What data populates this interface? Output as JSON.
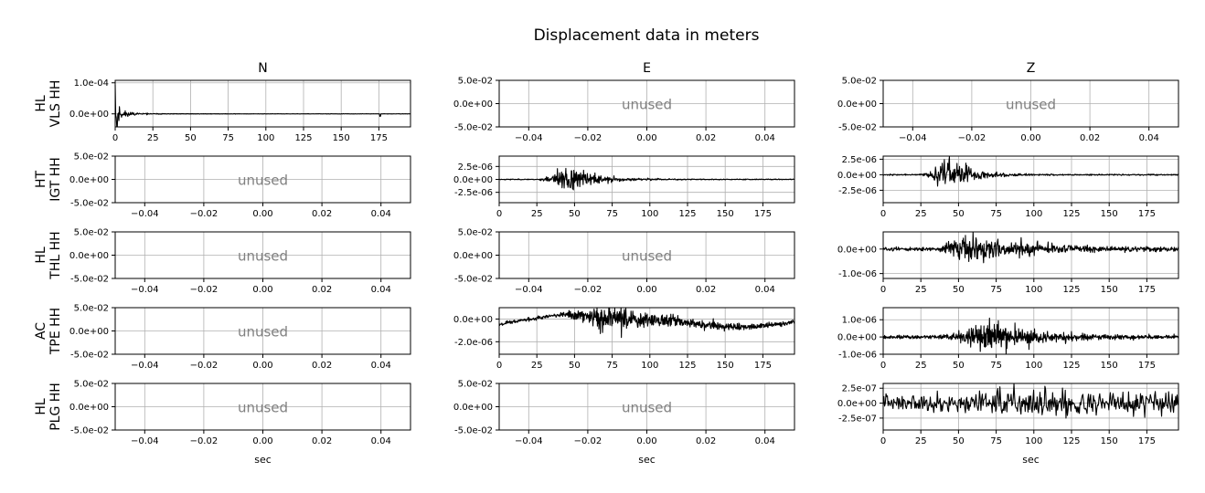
{
  "chart_data": {
    "type": "line",
    "title": "Displacement data in meters",
    "columns": [
      "N",
      "E",
      "Z"
    ],
    "xlabel": "sec",
    "unused_label": "unused",
    "rows": [
      {
        "label": [
          "HL",
          "VLS HH"
        ],
        "panels": [
          {
            "used": true,
            "xlim": [
              0,
              196
            ],
            "ylim": [
              -4.2e-05,
              0.000108
            ],
            "xticks": [
              0,
              25,
              50,
              75,
              100,
              125,
              150,
              175
            ],
            "xtick_labels": [
              "0",
              "25",
              "50",
              "75",
              "100",
              "125",
              "150",
              "175"
            ],
            "yticks": [
              0.0001,
              0
            ],
            "ytick_labels": [
              "1.0e-04",
              "0.0e+00"
            ],
            "signal": {
              "n": 560,
              "seed": 11,
              "onset": 0,
              "peak": 5.5e-06,
              "amp": 6e-05,
              "decay": 0.16,
              "noise": 5e-07,
              "drift": 0,
              "base": 5.5e-06,
              "spikes": [
                [
                  0.0,
                  9.5e-05
                ],
                [
                  1.2,
                  -4e-05
                ],
                [
                  176,
                  -8e-06
                ]
              ]
            }
          },
          {
            "used": false,
            "xlim": [
              -0.05,
              0.05
            ],
            "ylim": [
              -0.05,
              0.05
            ],
            "xticks": [
              -0.04,
              -0.02,
              0,
              0.02,
              0.04
            ],
            "xtick_labels": [
              "−0.04",
              "−0.02",
              "0.00",
              "0.02",
              "0.04"
            ],
            "yticks": [
              0.05,
              0,
              -0.05
            ],
            "ytick_labels": [
              "5.0e-02",
              "0.0e+00",
              "-5.0e-02"
            ]
          },
          {
            "used": false,
            "xlim": [
              -0.05,
              0.05
            ],
            "ylim": [
              -0.05,
              0.05
            ],
            "xticks": [
              -0.04,
              -0.02,
              0,
              0.02,
              0.04
            ],
            "xtick_labels": [
              "−0.04",
              "−0.02",
              "0.00",
              "0.02",
              "0.04"
            ],
            "yticks": [
              0.05,
              0,
              -0.05
            ],
            "ytick_labels": [
              "5.0e-02",
              "0.0e+00",
              "-5.0e-02"
            ]
          }
        ]
      },
      {
        "label": [
          "HT",
          "IGT HH"
        ],
        "panels": [
          {
            "used": false,
            "xlim": [
              -0.05,
              0.05
            ],
            "ylim": [
              -0.05,
              0.05
            ],
            "xticks": [
              -0.04,
              -0.02,
              0,
              0.02,
              0.04
            ],
            "xtick_labels": [
              "−0.04",
              "−0.02",
              "0.00",
              "0.02",
              "0.04"
            ],
            "yticks": [
              0.05,
              0,
              -0.05
            ],
            "ytick_labels": [
              "5.0e-02",
              "0.0e+00",
              "-5.0e-02"
            ]
          },
          {
            "used": true,
            "xlim": [
              0,
              196
            ],
            "ylim": [
              -4.5e-06,
              4.5e-06
            ],
            "xticks": [
              0,
              25,
              50,
              75,
              100,
              125,
              150,
              175
            ],
            "xtick_labels": [
              "0",
              "25",
              "50",
              "75",
              "100",
              "125",
              "150",
              "175"
            ],
            "yticks": [
              2.5e-06,
              0,
              -2.5e-06
            ],
            "ytick_labels": [
              "2.5e-06",
              "0.0e+00",
              "-2.5e-06"
            ],
            "signal": {
              "n": 700,
              "seed": 23,
              "onset": 24,
              "peak": 44,
              "amp": 3.8e-06,
              "decay": 0.06,
              "noise": 8e-08,
              "drift": 0,
              "base": 0,
              "spikes": []
            }
          },
          {
            "used": true,
            "xlim": [
              0,
              196
            ],
            "ylim": [
              -4.5e-06,
              3e-06
            ],
            "xticks": [
              0,
              25,
              50,
              75,
              100,
              125,
              150,
              175
            ],
            "xtick_labels": [
              "0",
              "25",
              "50",
              "75",
              "100",
              "125",
              "150",
              "175"
            ],
            "yticks": [
              2.5e-06,
              0,
              -2.5e-06
            ],
            "ytick_labels": [
              "2.5e-06",
              "0.0e+00",
              "-2.5e-06"
            ],
            "signal": {
              "n": 700,
              "seed": 37,
              "onset": 22,
              "peak": 44,
              "amp": 3.8e-06,
              "decay": 0.07,
              "noise": 1e-07,
              "drift": 0,
              "base": 0,
              "spikes": []
            }
          }
        ]
      },
      {
        "label": [
          "HL",
          "THL HH"
        ],
        "panels": [
          {
            "used": false,
            "xlim": [
              -0.05,
              0.05
            ],
            "ylim": [
              -0.05,
              0.05
            ],
            "xticks": [
              -0.04,
              -0.02,
              0,
              0.02,
              0.04
            ],
            "xtick_labels": [
              "−0.04",
              "−0.02",
              "0.00",
              "0.02",
              "0.04"
            ],
            "yticks": [
              0.05,
              0,
              -0.05
            ],
            "ytick_labels": [
              "5.0e-02",
              "0.0e+00",
              "-5.0e-02"
            ]
          },
          {
            "used": false,
            "xlim": [
              -0.05,
              0.05
            ],
            "ylim": [
              -0.05,
              0.05
            ],
            "xticks": [
              -0.04,
              -0.02,
              0,
              0.02,
              0.04
            ],
            "xtick_labels": [
              "−0.04",
              "−0.02",
              "0.00",
              "0.02",
              "0.04"
            ],
            "yticks": [
              0.05,
              0,
              -0.05
            ],
            "ytick_labels": [
              "5.0e-02",
              "0.0e+00",
              "-5.0e-02"
            ]
          },
          {
            "used": true,
            "xlim": [
              0,
              196
            ],
            "ylim": [
              -1.2e-06,
              7e-07
            ],
            "xticks": [
              0,
              25,
              50,
              75,
              100,
              125,
              150,
              175
            ],
            "xtick_labels": [
              "0",
              "25",
              "50",
              "75",
              "100",
              "125",
              "150",
              "175"
            ],
            "yticks": [
              0,
              -1e-06
            ],
            "ytick_labels": [
              "0.0e+00",
              "-1.0e-06"
            ],
            "signal": {
              "n": 700,
              "seed": 51,
              "onset": 28,
              "peak": 58,
              "amp": 8e-07,
              "decay": 0.03,
              "noise": 7e-08,
              "drift": 0,
              "base": 0,
              "spikes": []
            }
          }
        ]
      },
      {
        "label": [
          "AC",
          "TPE HH"
        ],
        "panels": [
          {
            "used": false,
            "xlim": [
              -0.05,
              0.05
            ],
            "ylim": [
              -0.05,
              0.05
            ],
            "xticks": [
              -0.04,
              -0.02,
              0,
              0.02,
              0.04
            ],
            "xtick_labels": [
              "−0.04",
              "−0.02",
              "0.00",
              "0.02",
              "0.04"
            ],
            "yticks": [
              0.05,
              0,
              -0.05
            ],
            "ytick_labels": [
              "5.0e-02",
              "0.0e+00",
              "-5.0e-02"
            ]
          },
          {
            "used": true,
            "xlim": [
              0,
              196
            ],
            "ylim": [
              -3.1e-06,
              1e-06
            ],
            "xticks": [
              0,
              25,
              50,
              75,
              100,
              125,
              150,
              175
            ],
            "xtick_labels": [
              "0",
              "25",
              "50",
              "75",
              "100",
              "125",
              "150",
              "175"
            ],
            "yticks": [
              0,
              -2e-06
            ],
            "ytick_labels": [
              "0.0e+00",
              "-2.0e-06"
            ],
            "signal": {
              "n": 800,
              "seed": 67,
              "onset": 35,
              "peak": 70,
              "amp": 1.6e-06,
              "decay": 0.025,
              "noise": 1.5e-07,
              "drift": 1,
              "base": 0,
              "spikes": []
            }
          },
          {
            "used": true,
            "xlim": [
              0,
              196
            ],
            "ylim": [
              -1e-06,
              1.7e-06
            ],
            "xticks": [
              0,
              25,
              50,
              75,
              100,
              125,
              150,
              175
            ],
            "xtick_labels": [
              "0",
              "25",
              "50",
              "75",
              "100",
              "125",
              "150",
              "175"
            ],
            "yticks": [
              1e-06,
              0,
              -1e-06
            ],
            "ytick_labels": [
              "1.0e-06",
              "0.0e+00",
              "-1.0e-06"
            ],
            "signal": {
              "n": 800,
              "seed": 79,
              "onset": 30,
              "peak": 72,
              "amp": 1.2e-06,
              "decay": 0.04,
              "noise": 1e-07,
              "drift": 0,
              "base": 0,
              "spikes": []
            }
          }
        ]
      },
      {
        "label": [
          "HL",
          "PLG HH"
        ],
        "panels": [
          {
            "used": false,
            "xlim": [
              -0.05,
              0.05
            ],
            "ylim": [
              -0.05,
              0.05
            ],
            "xticks": [
              -0.04,
              -0.02,
              0,
              0.02,
              0.04
            ],
            "xtick_labels": [
              "−0.04",
              "−0.02",
              "0.00",
              "0.02",
              "0.04"
            ],
            "yticks": [
              0.05,
              0,
              -0.05
            ],
            "ytick_labels": [
              "5.0e-02",
              "0.0e+00",
              "-5.0e-02"
            ]
          },
          {
            "used": false,
            "xlim": [
              -0.05,
              0.05
            ],
            "ylim": [
              -0.05,
              0.05
            ],
            "xticks": [
              -0.04,
              -0.02,
              0,
              0.02,
              0.04
            ],
            "xtick_labels": [
              "−0.04",
              "−0.02",
              "0.00",
              "0.02",
              "0.04"
            ],
            "yticks": [
              0.05,
              0,
              -0.05
            ],
            "ytick_labels": [
              "5.0e-02",
              "0.0e+00",
              "-5.0e-02"
            ]
          },
          {
            "used": true,
            "xlim": [
              0,
              196
            ],
            "ylim": [
              -4.5e-07,
              3.3e-07
            ],
            "xticks": [
              0,
              25,
              50,
              75,
              100,
              125,
              150,
              175
            ],
            "xtick_labels": [
              "0",
              "25",
              "50",
              "75",
              "100",
              "125",
              "150",
              "175"
            ],
            "yticks": [
              2.5e-07,
              0,
              -2.5e-07
            ],
            "ytick_labels": [
              "2.5e-07",
              "0.0e+00",
              "-2.5e-07"
            ],
            "signal": {
              "n": 420,
              "seed": 93,
              "onset": 0,
              "peak": 80,
              "amp": 1.2e-07,
              "decay": 0.002,
              "noise": 1.2e-07,
              "drift": 0,
              "base": 0,
              "spikes": []
            }
          }
        ]
      }
    ]
  }
}
